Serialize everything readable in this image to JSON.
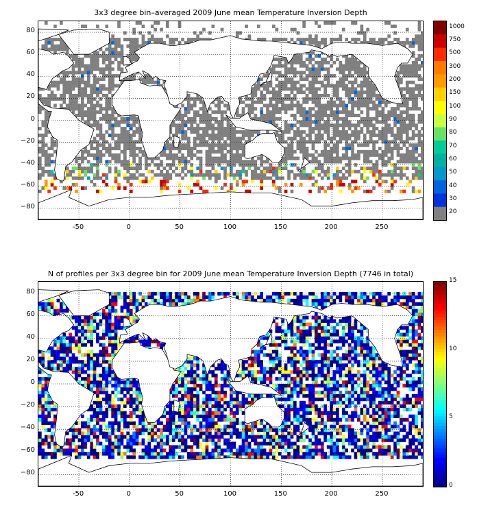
{
  "panel1": {
    "title": "3x3 degree bin–averaged 2009 June mean Temperature Inversion Depth",
    "colorbar_labels": [
      "1000",
      "750",
      "500",
      "300",
      "200",
      "150",
      "100",
      "90",
      "80",
      "70",
      "60",
      "50",
      "40",
      "30",
      "20"
    ]
  },
  "panel2": {
    "title": "N of profiles per 3x3 degree bin for 2009 June mean Temperature Inversion Depth  (7746 in total)",
    "colorbar_labels": [
      "15",
      "10",
      "5",
      "0"
    ]
  },
  "x_ticks": [
    "-50",
    "0",
    "50",
    "100",
    "150",
    "200",
    "250"
  ],
  "y_ticks": [
    "80",
    "60",
    "40",
    "20",
    "0",
    "−20",
    "−40",
    "−60",
    "−80"
  ],
  "colors": {
    "ocean_fill": "#808080",
    "colorbar1": [
      "#800000",
      "#cc0000",
      "#ff2a00",
      "#ff7a00",
      "#ff9900",
      "#ffd000",
      "#ffff00",
      "#c8ff40",
      "#66e066",
      "#00cc99",
      "#00b0a0",
      "#0099cc",
      "#0066e0",
      "#0033dd",
      "#808080"
    ],
    "jet": [
      "#00008f",
      "#0000ff",
      "#007fff",
      "#00ffff",
      "#7fff7f",
      "#ffff00",
      "#ff7f00",
      "#ff0000",
      "#800000"
    ]
  },
  "chart_data": [
    {
      "type": "heatmap",
      "title": "3x3 degree bin–averaged 2009 June mean Temperature Inversion Depth",
      "x_range": [
        -90,
        290
      ],
      "y_range": [
        -90,
        90
      ],
      "x_ticks": [
        -50,
        0,
        50,
        100,
        150,
        200,
        250
      ],
      "y_ticks": [
        80,
        60,
        40,
        20,
        0,
        -20,
        -40,
        -60,
        -80
      ],
      "bin_size_deg": 3,
      "colorbar": {
        "levels": [
          20,
          30,
          40,
          50,
          60,
          70,
          80,
          90,
          100,
          150,
          200,
          300,
          500,
          750,
          1000
        ]
      },
      "grid": true,
      "dominant_value_class": "20",
      "high_value_latitude_band": [
        -65,
        -40
      ]
    },
    {
      "type": "heatmap",
      "title": "N of profiles per 3x3 degree bin for 2009 June mean Temperature Inversion Depth  (7746 in total)",
      "x_range": [
        -90,
        290
      ],
      "y_range": [
        -90,
        90
      ],
      "bin_size_deg": 3,
      "total_profiles": 7746,
      "colorbar": {
        "min": 0,
        "max": 15,
        "ticks": [
          0,
          5,
          10,
          15
        ],
        "colormap": "jet"
      },
      "grid": true
    }
  ]
}
